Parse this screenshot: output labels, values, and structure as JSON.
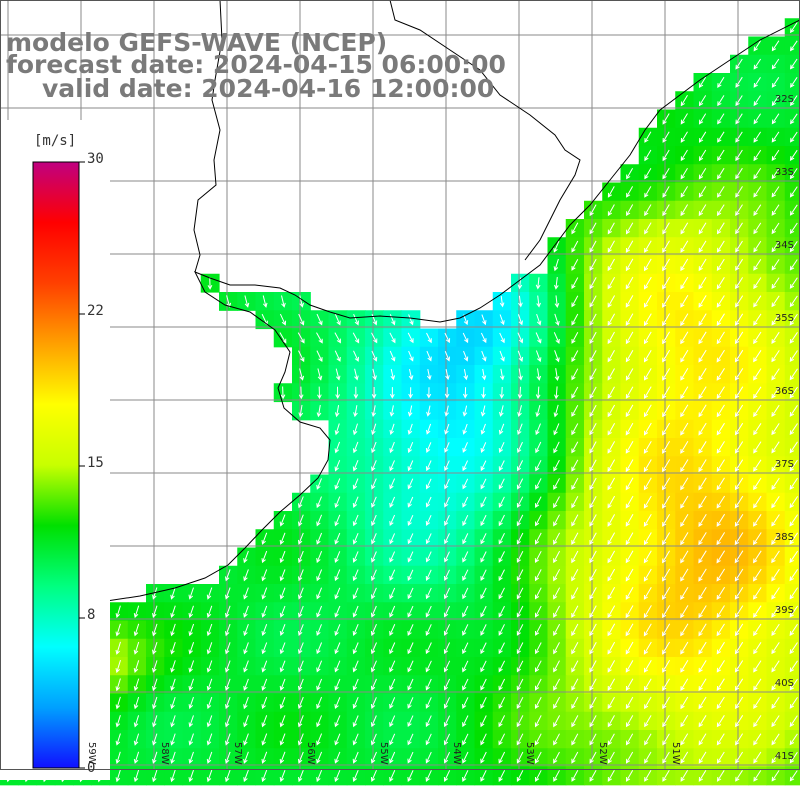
{
  "title": {
    "line1": "modelo GEFS-WAVE (NCEP)",
    "line2": "forecast date: 2024-04-15 06:00:00",
    "line3": "valid date: 2024-04-16 12:00:00"
  },
  "colorbar": {
    "unit": "[m/s]",
    "ticks": [
      "30",
      "22",
      "15",
      "8",
      "0"
    ],
    "tick_values": [
      30,
      22,
      15,
      8,
      0
    ],
    "range": [
      0,
      30
    ],
    "colors": [
      "#1010ff",
      "#00a0ff",
      "#00ffff",
      "#00ff80",
      "#00e000",
      "#c8ff00",
      "#ffff00",
      "#ffa000",
      "#ff4000",
      "#ff0000",
      "#c00080"
    ]
  },
  "map": {
    "lat_labels": [
      "32S",
      "33S",
      "34S",
      "35S",
      "36S",
      "37S",
      "38S",
      "39S",
      "40S",
      "41S"
    ],
    "lon_labels": [
      "59W",
      "58W",
      "57W",
      "56W",
      "55W",
      "54W",
      "53W",
      "52W",
      "51W"
    ],
    "grid_step_deg": 1,
    "land_color": "#ffffff",
    "coast_color": "#000000",
    "grid_color": "#8a8a8a"
  }
}
